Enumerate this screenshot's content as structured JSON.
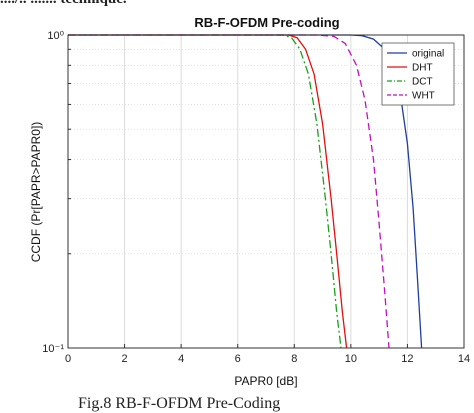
{
  "header_fragment": "..../.. ....... technique.",
  "caption": "Fig.8        RB-F-OFDM Pre-Coding",
  "chart_data": {
    "type": "line",
    "title": "RB-F-OFDM Pre-coding",
    "xlabel": "PAPR0 [dB]",
    "ylabel": "CCDF (Pr[PAPR>PAPR0])",
    "xlim": [
      0,
      14
    ],
    "ylim": [
      0.1,
      1
    ],
    "yscale": "log",
    "xticks": [
      0,
      2,
      4,
      6,
      8,
      10,
      12,
      14
    ],
    "xtick_labels": [
      "0",
      "2",
      "4",
      "6",
      "8",
      "10",
      "12",
      "14"
    ],
    "yticks": [
      0.1,
      1
    ],
    "ytick_labels": [
      "10⁻¹",
      "10⁰"
    ],
    "grid": true,
    "legend_position": "top-right",
    "series": [
      {
        "name": "original",
        "color": "#1f3f9a",
        "dash": "solid",
        "x": [
          10.0,
          10.4,
          10.8,
          11.2,
          11.5,
          11.8,
          12.0,
          12.2,
          12.35,
          12.5
        ],
        "y": [
          1.0,
          0.995,
          0.97,
          0.9,
          0.78,
          0.6,
          0.45,
          0.28,
          0.17,
          0.1
        ]
      },
      {
        "name": "DHT",
        "color": "#e01010",
        "dash": "solid",
        "x": [
          7.8,
          8.1,
          8.4,
          8.7,
          9.0,
          9.3,
          9.5,
          9.7,
          9.85
        ],
        "y": [
          1.0,
          0.98,
          0.9,
          0.75,
          0.52,
          0.3,
          0.2,
          0.13,
          0.1
        ]
      },
      {
        "name": "DCT",
        "color": "#1aa01a",
        "dash": "dashdot",
        "x": [
          7.6,
          7.9,
          8.2,
          8.5,
          8.8,
          9.1,
          9.3,
          9.5,
          9.65
        ],
        "y": [
          1.0,
          0.98,
          0.9,
          0.75,
          0.52,
          0.3,
          0.2,
          0.13,
          0.1
        ]
      },
      {
        "name": "WHT",
        "color": "#c010c0",
        "dash": "dashed",
        "x": [
          8.8,
          9.4,
          9.8,
          10.2,
          10.5,
          10.8,
          11.0,
          11.2,
          11.35
        ],
        "y": [
          1.0,
          0.99,
          0.94,
          0.8,
          0.62,
          0.4,
          0.25,
          0.15,
          0.1
        ]
      }
    ]
  }
}
